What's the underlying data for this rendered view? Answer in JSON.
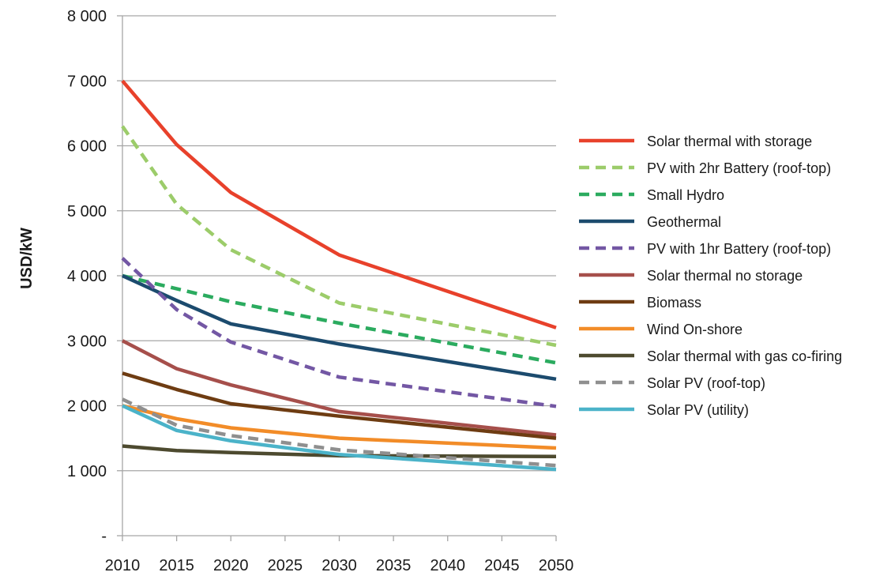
{
  "chart_data": {
    "type": "line",
    "title": "",
    "xlabel": "",
    "ylabel": "USD/kW",
    "x": [
      2010,
      2015,
      2020,
      2030,
      2050
    ],
    "x_ticks": [
      "2010",
      "2015",
      "2020",
      "2025",
      "2030",
      "2035",
      "2040",
      "2045",
      "2050"
    ],
    "y_ticks": [
      "-",
      "1 000",
      "2 000",
      "3 000",
      "4 000",
      "5 000",
      "6 000",
      "7 000",
      "8 000"
    ],
    "ylim": [
      0,
      8000
    ],
    "xlim": [
      2010,
      2050
    ],
    "grid": "horizontal",
    "legend_position": "right",
    "series": [
      {
        "name": "Solar thermal with storage",
        "color": "#e8412b",
        "dash": "solid",
        "values": [
          7000,
          6020,
          5280,
          4320,
          3200
        ]
      },
      {
        "name": "PV with 2hr Battery (roof-top)",
        "color": "#9ccc6a",
        "dash": "dashed",
        "values": [
          6300,
          5100,
          4400,
          3580,
          2930
        ]
      },
      {
        "name": "Small Hydro",
        "color": "#2bab5f",
        "dash": "dashed",
        "values": [
          4000,
          3800,
          3600,
          3270,
          2660
        ]
      },
      {
        "name": "Geothermal",
        "color": "#1c4b6e",
        "dash": "solid",
        "values": [
          4000,
          3620,
          3260,
          2950,
          2410
        ]
      },
      {
        "name": "PV with 1hr Battery (roof-top)",
        "color": "#7357a4",
        "dash": "dashed",
        "values": [
          4270,
          3480,
          2980,
          2440,
          1990
        ]
      },
      {
        "name": "Solar thermal no storage",
        "color": "#a64f4b",
        "dash": "solid",
        "values": [
          3000,
          2570,
          2320,
          1910,
          1550
        ]
      },
      {
        "name": "Biomass",
        "color": "#6e3c12",
        "dash": "solid",
        "values": [
          2500,
          2250,
          2030,
          1840,
          1500
        ]
      },
      {
        "name": "Wind On-shore",
        "color": "#f28c28",
        "dash": "solid",
        "values": [
          2000,
          1800,
          1660,
          1500,
          1350
        ]
      },
      {
        "name": "Solar thermal with gas co-firing",
        "color": "#4d4a2f",
        "dash": "solid",
        "values": [
          1380,
          1310,
          1280,
          1230,
          1220
        ]
      },
      {
        "name": "Solar PV (roof-top)",
        "color": "#8f8f8f",
        "dash": "dashed",
        "values": [
          2100,
          1700,
          1540,
          1320,
          1080
        ]
      },
      {
        "name": "Solar PV (utility)",
        "color": "#4bb3c9",
        "dash": "solid",
        "values": [
          2000,
          1620,
          1460,
          1250,
          1020
        ]
      }
    ]
  }
}
